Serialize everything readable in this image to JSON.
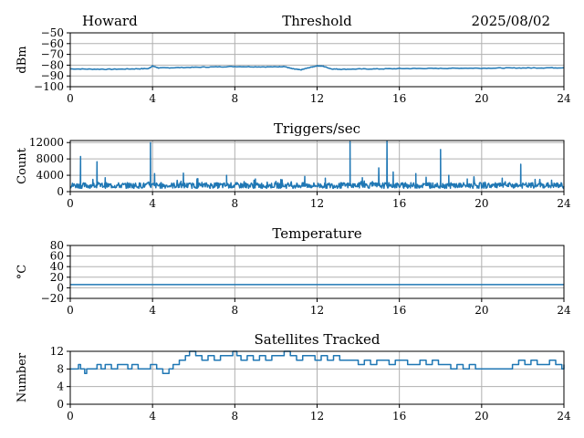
{
  "header": {
    "station": "Howard",
    "date": "2025/08/02"
  },
  "colors": {
    "series": "#1f77b4",
    "grid": "#b0b0b0",
    "axis": "#000000"
  },
  "chart_data": [
    {
      "type": "line",
      "title": "Threshold",
      "xlabel": "",
      "ylabel": "dBm",
      "xlim": [
        0,
        24
      ],
      "ylim": [
        -100,
        -50
      ],
      "xticks": [
        0,
        4,
        8,
        12,
        16,
        20,
        24
      ],
      "yticks": [
        -100,
        -90,
        -80,
        -70,
        -60,
        -50
      ],
      "ytick_labels": [
        "−100",
        "−90",
        "−80",
        "−70",
        "−60",
        "−50"
      ],
      "grid": true,
      "series": [
        {
          "x": [
            0,
            1,
            2,
            3,
            3.8,
            4.0,
            4.3,
            5,
            6,
            7,
            8,
            9,
            10,
            10.4,
            10.8,
            11.2,
            11.6,
            12.0,
            12.3,
            12.7,
            13.2,
            14,
            15,
            16,
            17,
            18,
            19,
            20,
            21,
            22,
            23,
            24
          ],
          "y": [
            -83.5,
            -83.7,
            -83.8,
            -83.5,
            -83.2,
            -80.8,
            -82.6,
            -82.4,
            -82,
            -81.6,
            -81.3,
            -81.5,
            -81.6,
            -81.2,
            -83.4,
            -84.4,
            -82.4,
            -80.6,
            -81,
            -83.5,
            -83.8,
            -83.6,
            -83.5,
            -83.2,
            -83.1,
            -83,
            -82.8,
            -82.8,
            -82.7,
            -82.6,
            -82.5,
            -82.4
          ]
        }
      ]
    },
    {
      "type": "line",
      "title": "Triggers/sec",
      "xlabel": "",
      "ylabel": "Count",
      "xlim": [
        0,
        24
      ],
      "ylim": [
        0,
        12500
      ],
      "xticks": [
        0,
        4,
        8,
        12,
        16,
        20,
        24
      ],
      "yticks": [
        0,
        4000,
        8000,
        12000
      ],
      "ytick_labels": [
        "0",
        "4000",
        "8000",
        "12000"
      ],
      "grid": true,
      "series": [
        {
          "baseline": 1500,
          "spikes": [
            {
              "x": 0.5,
              "y": 8600
            },
            {
              "x": 1.1,
              "y": 3000
            },
            {
              "x": 1.3,
              "y": 7300
            },
            {
              "x": 1.7,
              "y": 3400
            },
            {
              "x": 3.9,
              "y": 12000
            },
            {
              "x": 4.1,
              "y": 4400
            },
            {
              "x": 5.5,
              "y": 4500
            },
            {
              "x": 6.2,
              "y": 3200
            },
            {
              "x": 7.6,
              "y": 4000
            },
            {
              "x": 9.0,
              "y": 3100
            },
            {
              "x": 10.3,
              "y": 2900
            },
            {
              "x": 11.4,
              "y": 3700
            },
            {
              "x": 12.4,
              "y": 3300
            },
            {
              "x": 13.6,
              "y": 12200
            },
            {
              "x": 14.2,
              "y": 3400
            },
            {
              "x": 15.0,
              "y": 5800
            },
            {
              "x": 15.4,
              "y": 12300
            },
            {
              "x": 15.7,
              "y": 4800
            },
            {
              "x": 16.8,
              "y": 4400
            },
            {
              "x": 17.3,
              "y": 3500
            },
            {
              "x": 18.0,
              "y": 10300
            },
            {
              "x": 18.4,
              "y": 4000
            },
            {
              "x": 19.3,
              "y": 3100
            },
            {
              "x": 21.0,
              "y": 3300
            },
            {
              "x": 21.9,
              "y": 6700
            },
            {
              "x": 22.6,
              "y": 3000
            },
            {
              "x": 23.4,
              "y": 2800
            }
          ]
        }
      ]
    },
    {
      "type": "line",
      "title": "Temperature",
      "xlabel": "",
      "ylabel": "°C",
      "xlim": [
        0,
        24
      ],
      "ylim": [
        -20,
        80
      ],
      "xticks": [
        0,
        4,
        8,
        12,
        16,
        20,
        24
      ],
      "yticks": [
        -20,
        0,
        20,
        40,
        60,
        80
      ],
      "ytick_labels": [
        "−20",
        "0",
        "20",
        "40",
        "60",
        "80"
      ],
      "grid": true,
      "series": [
        {
          "x": [
            0,
            24
          ],
          "y": [
            6,
            6
          ]
        }
      ]
    },
    {
      "type": "line",
      "title": "Satellites Tracked",
      "xlabel": "",
      "ylabel": "Number",
      "xlim": [
        0,
        24
      ],
      "ylim": [
        0,
        12
      ],
      "xticks": [
        0,
        4,
        8,
        12,
        16,
        20,
        24
      ],
      "yticks": [
        0,
        4,
        8,
        12
      ],
      "ytick_labels": [
        "0",
        "4",
        "8",
        "12"
      ],
      "grid": true,
      "series": [
        {
          "x": [
            0,
            0.4,
            0.5,
            0.7,
            0.8,
            1.0,
            1.3,
            1.5,
            1.7,
            2.0,
            2.3,
            2.5,
            2.8,
            3.0,
            3.3,
            3.6,
            3.9,
            4.2,
            4.5,
            4.8,
            5.0,
            5.3,
            5.6,
            5.8,
            6.1,
            6.4,
            6.7,
            7.0,
            7.3,
            7.6,
            7.9,
            8.1,
            8.3,
            8.6,
            8.9,
            9.2,
            9.5,
            9.8,
            10.1,
            10.4,
            10.7,
            11.0,
            11.3,
            11.6,
            11.9,
            12.2,
            12.5,
            12.8,
            13.1,
            13.4,
            13.7,
            14.0,
            14.3,
            14.6,
            14.9,
            15.2,
            15.5,
            15.8,
            16.1,
            16.4,
            16.7,
            17.0,
            17.3,
            17.6,
            17.9,
            18.2,
            18.5,
            18.8,
            19.1,
            19.4,
            19.7,
            20.0,
            20.3,
            20.6,
            20.9,
            21.2,
            21.5,
            21.8,
            22.1,
            22.4,
            22.7,
            23.0,
            23.3,
            23.6,
            23.9,
            24
          ],
          "y": [
            8,
            9,
            8,
            7,
            8,
            8,
            9,
            8,
            9,
            8,
            9,
            9,
            8,
            9,
            8,
            8,
            9,
            8,
            7,
            8,
            9,
            10,
            11,
            12,
            11,
            10,
            11,
            10,
            11,
            11,
            12,
            11,
            10,
            11,
            10,
            11,
            10,
            11,
            11,
            12,
            11,
            10,
            11,
            11,
            10,
            11,
            10,
            11,
            10,
            10,
            10,
            9,
            10,
            9,
            10,
            10,
            9,
            10,
            10,
            9,
            9,
            10,
            9,
            10,
            9,
            9,
            8,
            9,
            8,
            9,
            8,
            8,
            8,
            8,
            8,
            8,
            9,
            10,
            9,
            10,
            9,
            9,
            10,
            9,
            8,
            9
          ]
        }
      ]
    }
  ]
}
